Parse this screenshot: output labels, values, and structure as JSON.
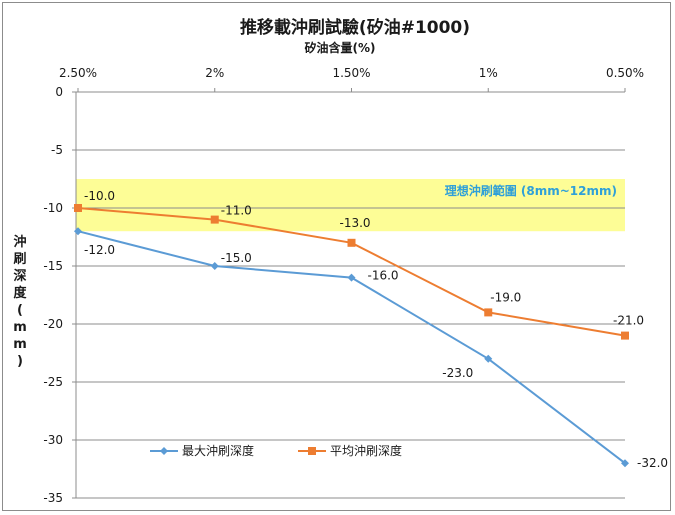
{
  "chart_data": {
    "type": "line",
    "title": "推移載沖刷試驗(矽油#1000)",
    "xlabel": "矽油含量(%)",
    "ylabel": "沖刷深度(mm)",
    "categories": [
      "2.50%",
      "2%",
      "1.50%",
      "1%",
      "0.50%"
    ],
    "ylim": [
      -35,
      0
    ],
    "yticks": [
      0,
      -5,
      -10,
      -15,
      -20,
      -25,
      -30,
      -35
    ],
    "grid": true,
    "legend_position": "bottom-left",
    "band": {
      "label": "理想沖刷範圍 (8mm~12mm)",
      "from": -7.5,
      "to": -12,
      "color": "#fdfd96",
      "label_color": "#2fa0d8"
    },
    "series": [
      {
        "name": "最大沖刷深度",
        "color": "#5b9bd5",
        "marker": "diamond",
        "values": [
          -12,
          -15,
          -16,
          -23,
          -32
        ],
        "labels": [
          "-12.0",
          "-15.0",
          "-16.0",
          "-23.0",
          "-32.0"
        ]
      },
      {
        "name": "平均沖刷深度",
        "color": "#ed7d31",
        "marker": "square",
        "values": [
          -10,
          -11,
          -13,
          -19,
          -21
        ],
        "labels": [
          "-10.0",
          "-11.0",
          "-13.0",
          "-19.0",
          "-21.0"
        ]
      }
    ]
  }
}
